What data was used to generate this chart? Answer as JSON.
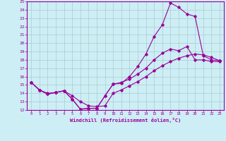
{
  "xlabel": "Windchill (Refroidissement éolien,°C)",
  "background_color": "#cdeef5",
  "line_color": "#990099",
  "grid_color": "#aacccc",
  "xlim": [
    -0.5,
    23.5
  ],
  "ylim": [
    12,
    25
  ],
  "xticks": [
    0,
    1,
    2,
    3,
    4,
    5,
    6,
    7,
    8,
    9,
    10,
    11,
    12,
    13,
    14,
    15,
    16,
    17,
    18,
    19,
    20,
    21,
    22,
    23
  ],
  "yticks": [
    12,
    13,
    14,
    15,
    16,
    17,
    18,
    19,
    20,
    21,
    22,
    23,
    24,
    25
  ],
  "lines": [
    {
      "x": [
        0,
        1,
        2,
        3,
        4,
        5,
        6,
        7,
        8,
        9,
        10,
        11,
        12,
        13,
        14,
        15,
        16,
        17,
        18,
        19,
        20,
        21,
        22,
        23
      ],
      "y": [
        15.3,
        14.4,
        13.9,
        14.1,
        14.3,
        13.3,
        12.1,
        12.2,
        12.2,
        13.7,
        15.1,
        15.2,
        16.0,
        17.2,
        18.7,
        20.8,
        22.2,
        24.8,
        24.3,
        23.5,
        23.2,
        18.5,
        18.0,
        17.9
      ]
    },
    {
      "x": [
        0,
        1,
        2,
        3,
        4,
        5,
        6,
        7,
        8,
        9,
        10,
        11,
        12,
        13,
        14,
        15,
        16,
        17,
        18,
        19,
        20,
        21,
        22,
        23
      ],
      "y": [
        15.3,
        14.4,
        13.9,
        14.1,
        14.3,
        13.3,
        12.1,
        12.2,
        12.2,
        13.7,
        15.1,
        15.3,
        15.7,
        16.3,
        17.0,
        18.0,
        18.8,
        19.3,
        19.1,
        19.6,
        18.0,
        18.0,
        17.8,
        17.8
      ]
    },
    {
      "x": [
        0,
        1,
        2,
        3,
        4,
        5,
        6,
        7,
        8,
        9,
        10,
        11,
        12,
        13,
        14,
        15,
        16,
        17,
        18,
        19,
        20,
        21,
        22,
        23
      ],
      "y": [
        15.3,
        14.4,
        14.0,
        14.1,
        14.3,
        13.7,
        13.0,
        12.5,
        12.4,
        12.5,
        14.0,
        14.4,
        14.9,
        15.4,
        16.0,
        16.7,
        17.3,
        17.8,
        18.2,
        18.5,
        18.7,
        18.6,
        18.3,
        17.9
      ]
    }
  ]
}
